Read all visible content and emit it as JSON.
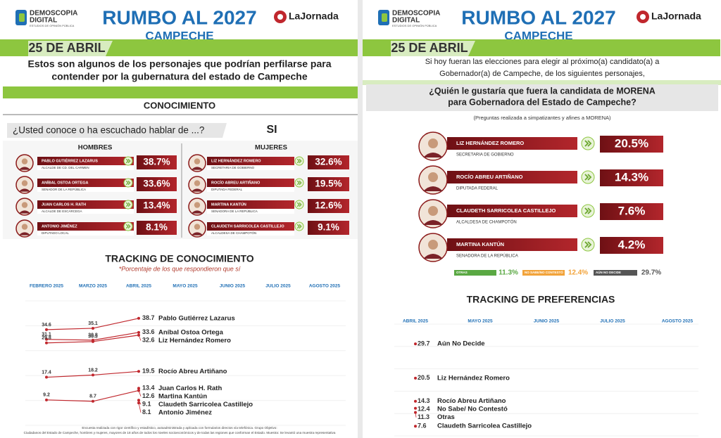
{
  "left": {
    "logo": {
      "name": "DEMOSCOPIA",
      "name2": "DIGITAL",
      "tagline": "ESTUDIOS DE OPINIÓN PÚBLICA"
    },
    "title": "RUMBO AL 2027",
    "subtitle": "CAMPECHE",
    "brand": "LaJornada",
    "date": "25 DE ABRIL",
    "intro": [
      "Estos son algunos de los personajes que podrían perfilarse para",
      "contender por la gubernatura del estado de Campeche"
    ],
    "section": "CONOCIMIENTO",
    "question": "¿Usted conoce o ha escuchado hablar de ...?",
    "answer": "SI",
    "groups": [
      {
        "title": "HOMBRES",
        "rows": [
          {
            "name": "PABLO GUTIÉRREZ LAZARUS",
            "role": "ALCALDE DE CD. DEL CARMEN",
            "value": "38.7%"
          },
          {
            "name": "ANÍBAL OSTOA ORTEGA",
            "role": "SENADOR DE LA REPÚBLICA",
            "value": "33.6%"
          },
          {
            "name": "JUAN CARLOS H. RATH",
            "role": "ALCALDE DE ESCÁRCEGA",
            "value": "13.4%"
          },
          {
            "name": "ANTONIO JIMÉNEZ",
            "role": "DIPUTADO LOCAL",
            "value": "8.1%"
          }
        ]
      },
      {
        "title": "MUJERES",
        "rows": [
          {
            "name": "LIZ HERNÁNDEZ ROMERO",
            "role": "SECRETARIA DE GOBIERNO",
            "value": "32.6%"
          },
          {
            "name": "ROCÍO ABREU ARTIÑANO",
            "role": "DIPUTADA FEDERAL",
            "value": "19.5%"
          },
          {
            "name": "MARTINA KANTÚN",
            "role": "SENADORA DE LA REPÚBLICA",
            "value": "12.6%"
          },
          {
            "name": "CLAUDETH SARRICOLEA CASTILLEJO",
            "role": "ALCALDESA DE CHAMPOTÓN",
            "value": "9.1%"
          }
        ]
      }
    ],
    "tracking": {
      "title": "TRACKING DE CONOCIMIENTO",
      "subtitle": "*Porcentaje de los que respondieron que sí",
      "months": [
        "FEBRERO 2025",
        "MARZO 2025",
        "ABRIL 2025",
        "MAYO 2025",
        "JUNIO 2025",
        "JULIO 2025",
        "AGOSTO 2025"
      ],
      "ylim": [
        0,
        45
      ],
      "color": "#c0272d",
      "series": [
        {
          "name": "Pablo Gutiérrez Lazarus",
          "values": [
            34.6,
            35.1,
            38.7,
            null,
            null,
            null,
            null
          ]
        },
        {
          "name": "Aníbal Ostoa Ortega",
          "values": [
            31.1,
            30.8,
            33.6,
            null,
            null,
            null,
            null
          ]
        },
        {
          "name": "Liz Hernández Romero",
          "values": [
            29.8,
            30.3,
            32.6,
            null,
            null,
            null,
            null
          ]
        },
        {
          "name": "Rocío Abreu Artiñano",
          "values": [
            17.4,
            18.2,
            19.5,
            null,
            null,
            null,
            null
          ]
        },
        {
          "name": "Juan Carlos H. Rath",
          "values": [
            null,
            null,
            13.4,
            null,
            null,
            null,
            null
          ]
        },
        {
          "name": "Martina Kantún",
          "values": [
            9.2,
            8.7,
            12.6,
            null,
            null,
            null,
            null
          ]
        },
        {
          "name": "Claudeth Sarricolea Castillejo",
          "values": [
            null,
            null,
            9.1,
            null,
            null,
            null,
            null
          ]
        },
        {
          "name": "Antonio Jiménez",
          "values": [
            null,
            null,
            8.1,
            null,
            null,
            null,
            null
          ]
        }
      ]
    },
    "footer": [
      "Encuesta realizada con rigor científico y estadístico, autoadministrada y aplicada con formularios directos vía telefónica. Grupo Objetivo:",
      "Ciudadanos del Estado de Campeche, hombres y mujeres, mayores de 18 años de todos los niveles socioeconómicos y de todas las regiones que conforman el Estado. Muestra: Se levantó una muestra representativa"
    ]
  },
  "right": {
    "logo": {
      "name": "DEMOSCOPIA",
      "name2": "DIGITAL",
      "tagline": "ESTUDIOS DE OPINIÓN PÚBLICA"
    },
    "title": "RUMBO AL 2027",
    "subtitle": "CAMPECHE",
    "brand": "LaJornada",
    "date": "25 DE ABRIL",
    "intro": [
      "Si hoy fueran las elecciones para elegir al próximo(a) candidato(a) a",
      "Gobernador(a) de Campeche, de los siguientes personajes,"
    ],
    "question": [
      "¿Quién le gustaría que fuera la candidata de MORENA",
      "para Gobernadora del Estado de Campeche?"
    ],
    "note": "(Preguntas realizada a simpatizantes y afines a MORENA)",
    "candidates": [
      {
        "name": "LIZ HERNÁNDEZ ROMERO",
        "role": "SECRETARIA DE GOBIERNO",
        "value": "20.5%"
      },
      {
        "name": "ROCÍO ABREU ARTIÑANO",
        "role": "DIPUTADA FEDERAL",
        "value": "14.3%"
      },
      {
        "name": "CLAUDETH SARRICOLEA CASTILLEJO",
        "role": "ALCALDESA DE CHAMPOTÓN",
        "value": "7.6%"
      },
      {
        "name": "MARTINA KANTÚN",
        "role": "SENADORA DE LA REPÚBLICA",
        "value": "4.2%"
      }
    ],
    "others": [
      {
        "label": "OTRAS",
        "value": "11.3%",
        "color": "#5aa843"
      },
      {
        "label": "NO SABE/NO CONTESTÓ",
        "value": "12.4%",
        "color": "#f2a33a"
      },
      {
        "label": "AÚN NO DECIDE",
        "value": "29.7%",
        "color": "#555555"
      }
    ],
    "tracking": {
      "title": "TRACKING DE PREFERENCIAS",
      "months": [
        "ABRIL 2025",
        "MAYO 2025",
        "JUNIO 2025",
        "JULIO 2025",
        "AGOSTO 2025"
      ],
      "ylim": [
        5,
        35
      ],
      "color": "#c0272d",
      "series": [
        {
          "name": "Aún No Decide",
          "values": [
            29.7,
            null,
            null,
            null,
            null
          ]
        },
        {
          "name": "Liz Hernández Romero",
          "values": [
            20.5,
            null,
            null,
            null,
            null
          ]
        },
        {
          "name": "Rocío Abreu Artiñano",
          "values": [
            14.3,
            null,
            null,
            null,
            null
          ]
        },
        {
          "name": "No Sabe/ No Contestó",
          "values": [
            12.4,
            null,
            null,
            null,
            null
          ]
        },
        {
          "name": "Otras",
          "values": [
            11.3,
            null,
            null,
            null,
            null
          ]
        },
        {
          "name": "Claudeth Sarricolea Castillejo",
          "values": [
            7.6,
            null,
            null,
            null,
            null
          ]
        }
      ]
    }
  }
}
